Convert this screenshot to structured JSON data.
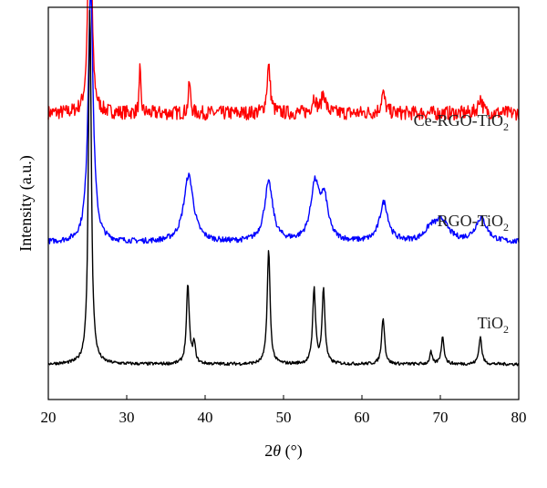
{
  "chart_data": {
    "type": "line",
    "title": "",
    "xlabel_prefix": "2",
    "xlabel_symbol": "θ",
    "xlabel_suffix": " (°)",
    "ylabel": "Intensity (a.u.)",
    "xlim": [
      20,
      80
    ],
    "xticks": [
      20,
      30,
      40,
      50,
      60,
      70,
      80
    ],
    "grid": false,
    "series": [
      {
        "name": "Ce-RGO-TiO2",
        "label_main": "Ce-RGO-TiO",
        "label_sub": "2",
        "color": "#ff0000",
        "baseline": 0.73,
        "noise": 0.018,
        "peaks": [
          [
            25.3,
            0.8,
            0.22
          ],
          [
            31.7,
            0.11,
            0.12
          ],
          [
            38.0,
            0.08,
            0.15
          ],
          [
            48.1,
            0.12,
            0.25
          ],
          [
            53.9,
            0.04,
            0.3
          ],
          [
            55.1,
            0.05,
            0.3
          ],
          [
            62.7,
            0.05,
            0.3
          ],
          [
            75.1,
            0.04,
            0.3
          ]
        ]
      },
      {
        "name": "RGO-TiO2",
        "label_main": "RGO-TiO",
        "label_sub": "2",
        "color": "#0000ff",
        "baseline": 0.4,
        "noise": 0.007,
        "peaks": [
          [
            25.4,
            0.65,
            0.38
          ],
          [
            37.9,
            0.17,
            0.75
          ],
          [
            48.1,
            0.15,
            0.65
          ],
          [
            54.0,
            0.14,
            0.65
          ],
          [
            55.2,
            0.1,
            0.6
          ],
          [
            62.8,
            0.1,
            0.65
          ],
          [
            68.8,
            0.03,
            0.9
          ],
          [
            70.2,
            0.05,
            1.0
          ],
          [
            75.2,
            0.06,
            0.9
          ]
        ]
      },
      {
        "name": "TiO2",
        "label_main": "TiO",
        "label_sub": "2",
        "color": "#000000",
        "baseline": 0.09,
        "noise": 0.004,
        "peaks": [
          [
            25.3,
            0.91,
            0.22
          ],
          [
            37.8,
            0.2,
            0.22
          ],
          [
            38.6,
            0.05,
            0.2
          ],
          [
            48.1,
            0.29,
            0.22
          ],
          [
            53.9,
            0.19,
            0.22
          ],
          [
            55.1,
            0.19,
            0.22
          ],
          [
            62.7,
            0.12,
            0.22
          ],
          [
            68.8,
            0.03,
            0.18
          ],
          [
            70.3,
            0.07,
            0.22
          ],
          [
            75.1,
            0.07,
            0.22
          ]
        ]
      }
    ]
  }
}
